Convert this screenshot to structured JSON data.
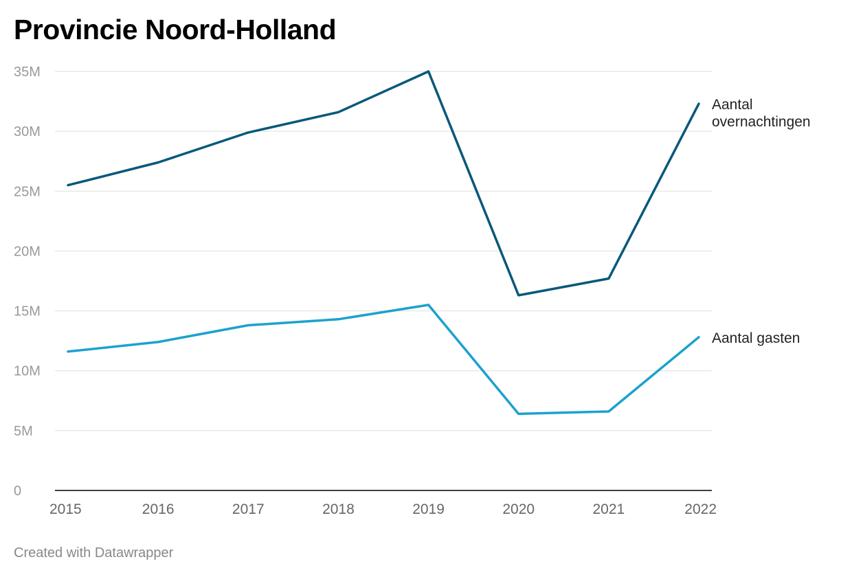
{
  "colors": {
    "overnachtingen": "#08587a",
    "gasten": "#1ca1cf",
    "grid": "#dddddd",
    "axis": "#000000",
    "tick_label": "#999999",
    "x_tick_label": "#666666",
    "series_label": "#222222"
  },
  "footer": "Created with Datawrapper",
  "chart_data": {
    "type": "line",
    "title": "Provincie Noord-Holland",
    "xlabel": "",
    "ylabel": "",
    "x": [
      "2015",
      "2016",
      "2017",
      "2018",
      "2019",
      "2020",
      "2021",
      "2022"
    ],
    "ylim": [
      0,
      35000000
    ],
    "yticks": [
      0,
      5000000,
      10000000,
      15000000,
      20000000,
      25000000,
      30000000,
      35000000
    ],
    "ytick_labels": [
      "0",
      "5M",
      "10M",
      "15M",
      "20M",
      "25M",
      "30M",
      "35M"
    ],
    "grid": true,
    "legend": "inline labels at line ends (right)",
    "series": [
      {
        "name": "Aantal overnachtingen",
        "label_lines": [
          "Aantal",
          "overnachtingen"
        ],
        "color_key": "overnachtingen",
        "values": [
          25500000,
          27400000,
          29900000,
          31600000,
          35000000,
          16300000,
          17700000,
          32300000
        ]
      },
      {
        "name": "Aantal gasten",
        "label_lines": [
          "Aantal gasten"
        ],
        "color_key": "gasten",
        "values": [
          11600000,
          12400000,
          13800000,
          14300000,
          15500000,
          6400000,
          6600000,
          12800000
        ]
      }
    ]
  }
}
